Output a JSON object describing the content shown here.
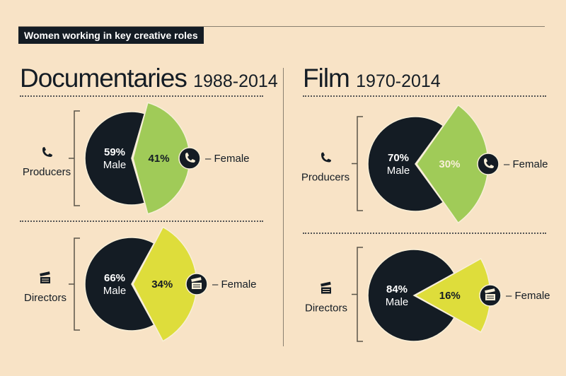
{
  "header": {
    "tag": "Women working in key creative roles"
  },
  "colors": {
    "background": "#f8e3c6",
    "male": "#141c24",
    "producers_female": "#a0cb58",
    "directors_female": "#dedd3b"
  },
  "sections": [
    {
      "title": "Documentaries",
      "years": "1988-2014"
    },
    {
      "title": "Film",
      "years": "1970-2014"
    }
  ],
  "chart_data": [
    {
      "type": "pie",
      "section": "Documentaries 1988-2014",
      "role": "Producers",
      "icon": "phone-icon",
      "slices": [
        {
          "label": "Male",
          "value": 59,
          "text": "59%"
        },
        {
          "label": "Female",
          "value": 41,
          "text": "41%"
        }
      ],
      "legend": "– Female"
    },
    {
      "type": "pie",
      "section": "Documentaries 1988-2014",
      "role": "Directors",
      "icon": "clapperboard-icon",
      "slices": [
        {
          "label": "Male",
          "value": 66,
          "text": "66%"
        },
        {
          "label": "Female",
          "value": 34,
          "text": "34%"
        }
      ],
      "legend": "– Female"
    },
    {
      "type": "pie",
      "section": "Film 1970-2014",
      "role": "Producers",
      "icon": "phone-icon",
      "slices": [
        {
          "label": "Male",
          "value": 70,
          "text": "70%"
        },
        {
          "label": "Female",
          "value": 30,
          "text": "30%"
        }
      ],
      "legend": "– Female"
    },
    {
      "type": "pie",
      "section": "Film 1970-2014",
      "role": "Directors",
      "icon": "clapperboard-icon",
      "slices": [
        {
          "label": "Male",
          "value": 84,
          "text": "84%"
        },
        {
          "label": "Female",
          "value": 16,
          "text": "16%"
        }
      ],
      "legend": "– Female"
    }
  ]
}
